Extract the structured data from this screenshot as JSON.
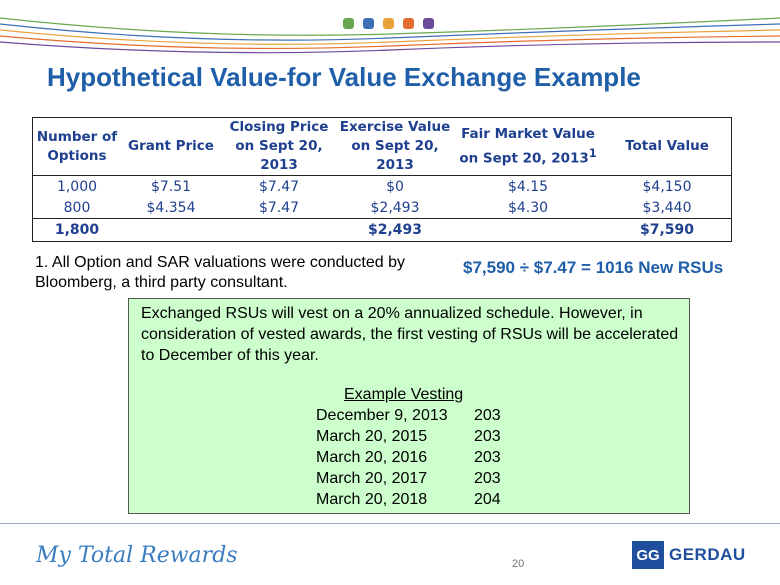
{
  "header": {
    "dot_colors": [
      "#6aa84f",
      "#3d6fb6",
      "#e8a23a",
      "#e46c2c",
      "#6b4a9c"
    ]
  },
  "title": "Hypothetical Value-for Value Exchange Example",
  "table": {
    "headers": {
      "col1": "Number of Options",
      "col2": "Grant Price",
      "col3": "Closing Price on Sept 20, 2013",
      "col4": "Exercise Value on Sept 20, 2013",
      "col5": "Fair Market Value on Sept 20, 2013",
      "col5_sup": "1",
      "col6": "Total Value"
    },
    "rows": [
      {
        "options": "1,000",
        "grant": "$7.51",
        "closing": "$7.47",
        "exercise": "$0",
        "fmv": "$4.15",
        "total": "$4,150"
      },
      {
        "options": "800",
        "grant": "$4.354",
        "closing": "$7.47",
        "exercise": "$2,493",
        "fmv": "$4.30",
        "total": "$3,440"
      }
    ],
    "totals": {
      "options": "1,800",
      "exercise": "$2,493",
      "total": "$7,590"
    }
  },
  "footnote": "1. All Option and SAR valuations were conducted by Bloomberg, a third party consultant.",
  "calculation": "$7,590 ÷ $7.47 = 1016 New RSUs",
  "vesting_box": {
    "text": "Exchanged RSUs will vest on a 20% annualized schedule.  However, in consideration of vested awards, the first vesting of RSUs will be accelerated to December of this year.",
    "example_title": "Example Vesting",
    "schedule": [
      {
        "date": "December 9, 2013",
        "units": "203"
      },
      {
        "date": "March 20, 2015",
        "units": "203"
      },
      {
        "date": "March 20, 2016",
        "units": "203"
      },
      {
        "date": "March 20, 2017",
        "units": "203"
      },
      {
        "date": "March 20, 2018",
        "units": "204"
      }
    ]
  },
  "footer": {
    "brand": "My Total Rewards",
    "page_number": "20",
    "logo_mark": "GG",
    "logo_word": "GERDAU"
  }
}
